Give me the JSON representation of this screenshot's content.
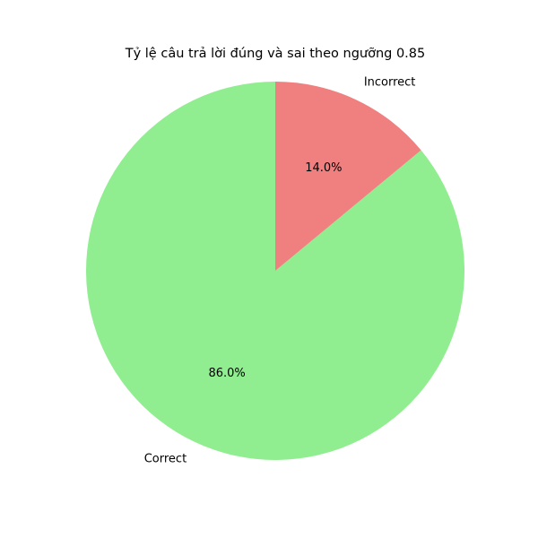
{
  "chart_data": {
    "type": "pie",
    "title": "Tỷ lệ câu trả lời đúng và sai theo ngưỡng 0.85",
    "slices": [
      {
        "label": "Correct",
        "value": 86.0,
        "pct_label": "86.0%",
        "color": "#90ee90"
      },
      {
        "label": "Incorrect",
        "value": 14.0,
        "pct_label": "14.0%",
        "color": "#f08080"
      }
    ],
    "start_angle_deg": 90,
    "direction": "counterclockwise",
    "legend": "none"
  }
}
